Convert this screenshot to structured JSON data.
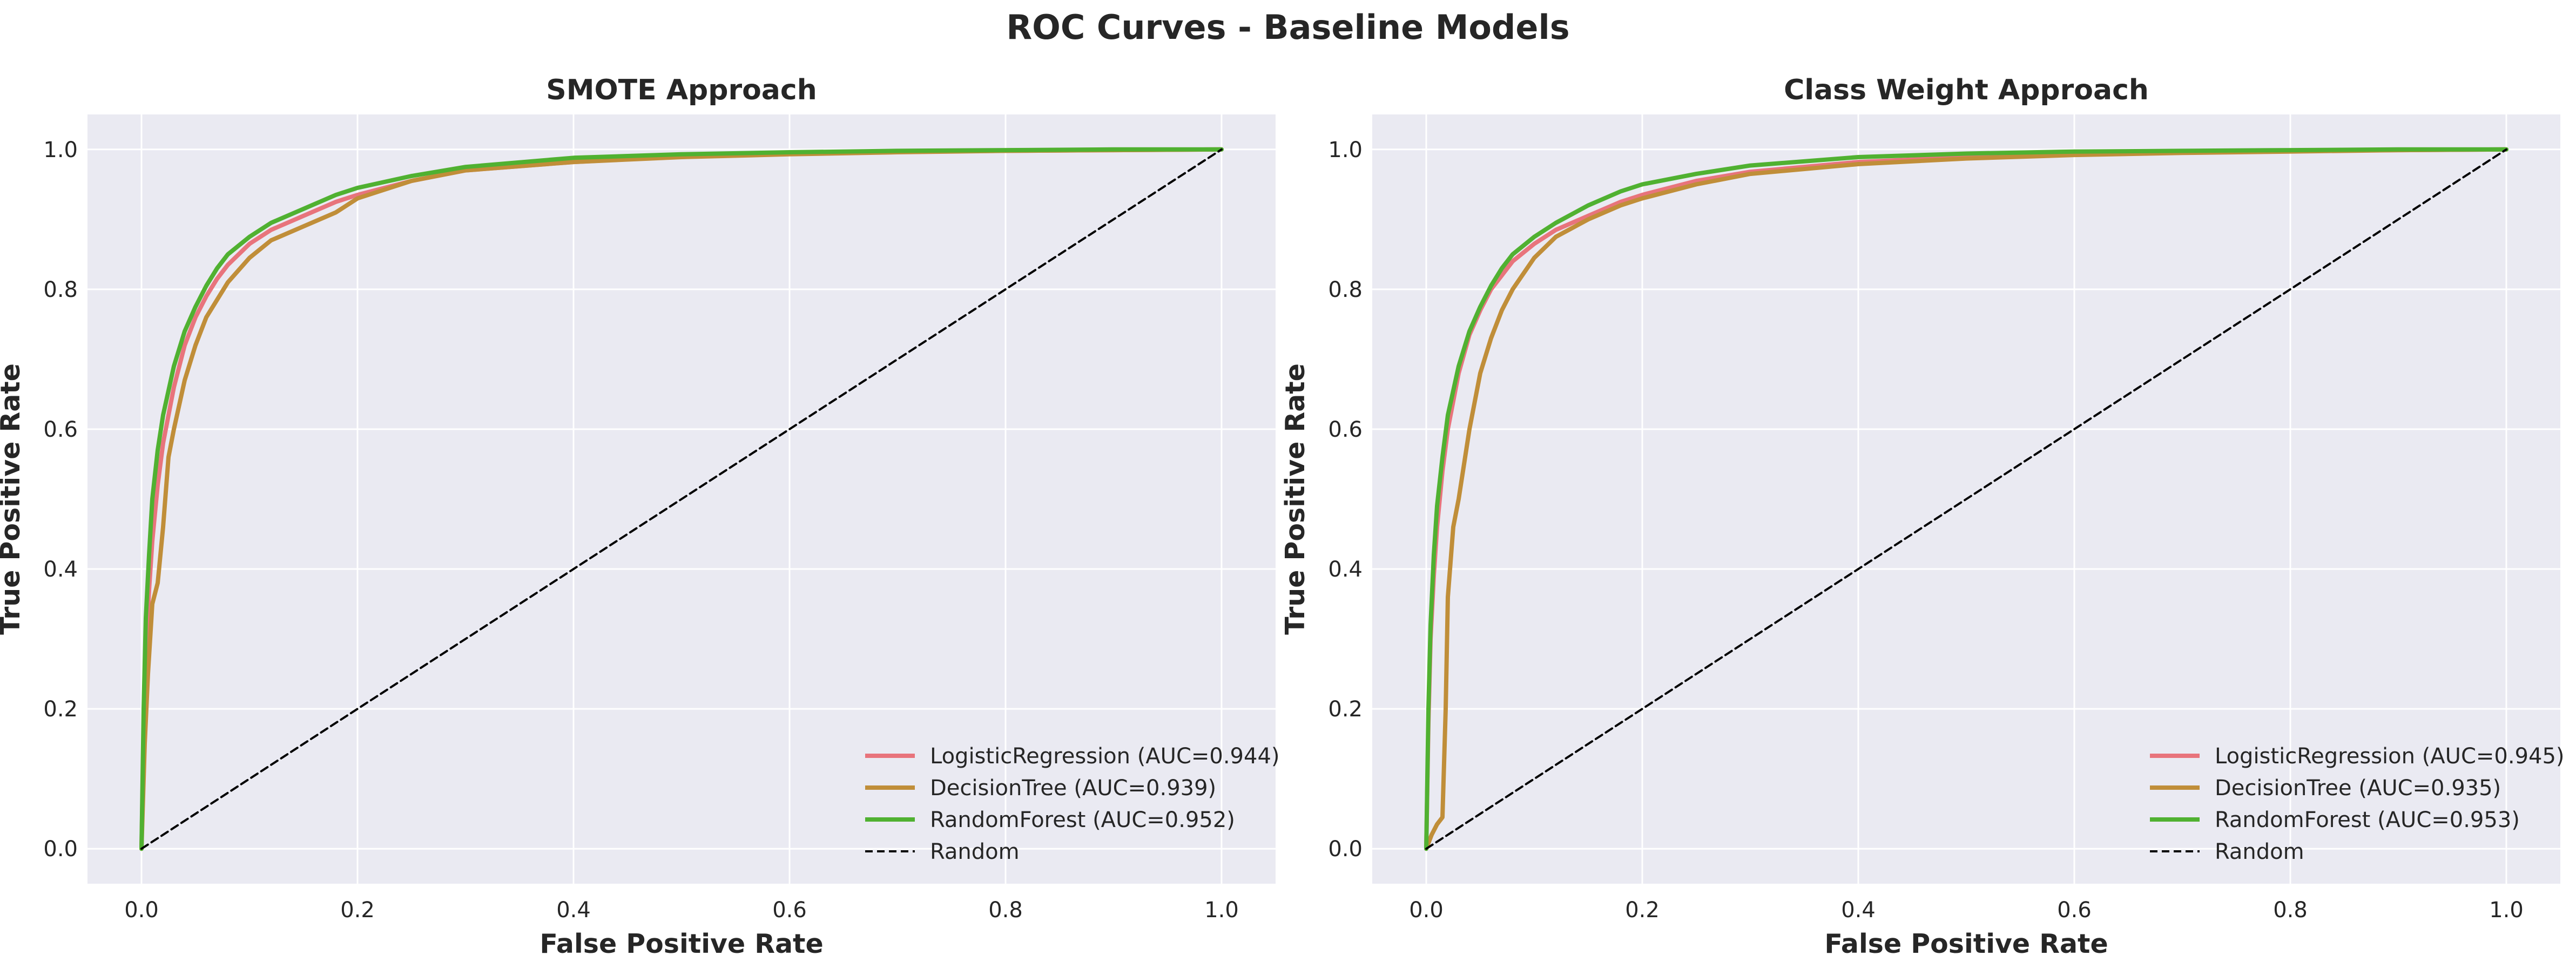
{
  "figure": {
    "suptitle": "ROC Curves - Baseline Models"
  },
  "chart_data": [
    {
      "type": "line",
      "title": "SMOTE Approach",
      "xlabel": "False Positive Rate",
      "ylabel": "True Positive Rate",
      "xlim": [
        -0.05,
        1.05
      ],
      "ylim": [
        -0.05,
        1.05
      ],
      "xticks": [
        "0.0",
        "0.2",
        "0.4",
        "0.6",
        "0.8",
        "1.0"
      ],
      "yticks": [
        "0.0",
        "0.2",
        "0.4",
        "0.6",
        "0.8",
        "1.0"
      ],
      "grid": true,
      "legend_position": "bottom-right",
      "series": [
        {
          "name": "LogisticRegression (AUC=0.944)",
          "color": "#e8747c",
          "style": "solid",
          "x": [
            0,
            0.002,
            0.004,
            0.007,
            0.01,
            0.015,
            0.02,
            0.03,
            0.04,
            0.05,
            0.06,
            0.07,
            0.08,
            0.1,
            0.12,
            0.15,
            0.18,
            0.2,
            0.25,
            0.3,
            0.4,
            0.5,
            0.6,
            0.7,
            0.8,
            0.9,
            1.0
          ],
          "y": [
            0,
            0.17,
            0.28,
            0.37,
            0.44,
            0.52,
            0.58,
            0.66,
            0.72,
            0.76,
            0.79,
            0.815,
            0.835,
            0.865,
            0.885,
            0.905,
            0.925,
            0.935,
            0.955,
            0.97,
            0.982,
            0.99,
            0.994,
            0.997,
            0.998,
            0.999,
            1.0
          ]
        },
        {
          "name": "DecisionTree (AUC=0.939)",
          "color": "#c08e39",
          "style": "solid",
          "x": [
            0,
            0.003,
            0.006,
            0.01,
            0.015,
            0.02,
            0.025,
            0.03,
            0.04,
            0.05,
            0.06,
            0.08,
            0.1,
            0.12,
            0.15,
            0.18,
            0.2,
            0.22,
            0.25,
            0.3,
            0.4,
            0.5,
            0.6,
            0.7,
            0.8,
            0.9,
            1.0
          ],
          "y": [
            0,
            0.15,
            0.25,
            0.35,
            0.38,
            0.46,
            0.56,
            0.6,
            0.67,
            0.72,
            0.76,
            0.81,
            0.845,
            0.87,
            0.89,
            0.91,
            0.93,
            0.94,
            0.955,
            0.97,
            0.982,
            0.989,
            0.993,
            0.996,
            0.998,
            0.999,
            1.0
          ]
        },
        {
          "name": "RandomForest (AUC=0.952)",
          "color": "#50b131",
          "style": "solid",
          "x": [
            0,
            0.002,
            0.004,
            0.007,
            0.01,
            0.015,
            0.02,
            0.03,
            0.04,
            0.05,
            0.06,
            0.07,
            0.08,
            0.1,
            0.12,
            0.15,
            0.18,
            0.2,
            0.25,
            0.3,
            0.4,
            0.5,
            0.6,
            0.7,
            0.8,
            0.9,
            1.0
          ],
          "y": [
            0,
            0.2,
            0.33,
            0.42,
            0.5,
            0.57,
            0.62,
            0.69,
            0.74,
            0.775,
            0.805,
            0.83,
            0.85,
            0.875,
            0.895,
            0.915,
            0.935,
            0.945,
            0.962,
            0.975,
            0.988,
            0.993,
            0.996,
            0.998,
            0.999,
            1.0,
            1.0
          ]
        },
        {
          "name": "Random",
          "color": "#000000",
          "style": "dashed",
          "x": [
            0,
            1
          ],
          "y": [
            0,
            1
          ]
        }
      ]
    },
    {
      "type": "line",
      "title": "Class Weight Approach",
      "xlabel": "False Positive Rate",
      "ylabel": "True Positive Rate",
      "xlim": [
        -0.05,
        1.05
      ],
      "ylim": [
        -0.05,
        1.05
      ],
      "xticks": [
        "0.0",
        "0.2",
        "0.4",
        "0.6",
        "0.8",
        "1.0"
      ],
      "yticks": [
        "0.0",
        "0.2",
        "0.4",
        "0.6",
        "0.8",
        "1.0"
      ],
      "grid": true,
      "legend_position": "bottom-right",
      "series": [
        {
          "name": "LogisticRegression (AUC=0.945)",
          "color": "#e8747c",
          "style": "solid",
          "x": [
            0,
            0.002,
            0.004,
            0.007,
            0.01,
            0.015,
            0.02,
            0.03,
            0.04,
            0.05,
            0.06,
            0.07,
            0.08,
            0.1,
            0.12,
            0.15,
            0.18,
            0.2,
            0.25,
            0.3,
            0.4,
            0.5,
            0.6,
            0.7,
            0.8,
            0.9,
            1.0
          ],
          "y": [
            0,
            0.18,
            0.3,
            0.39,
            0.46,
            0.54,
            0.6,
            0.68,
            0.735,
            0.77,
            0.8,
            0.82,
            0.84,
            0.865,
            0.885,
            0.905,
            0.925,
            0.935,
            0.955,
            0.968,
            0.982,
            0.989,
            0.993,
            0.996,
            0.998,
            0.999,
            1.0
          ]
        },
        {
          "name": "DecisionTree (AUC=0.935)",
          "color": "#c08e39",
          "style": "solid",
          "x": [
            0,
            0.005,
            0.01,
            0.015,
            0.018,
            0.02,
            0.025,
            0.03,
            0.04,
            0.05,
            0.06,
            0.07,
            0.08,
            0.1,
            0.12,
            0.15,
            0.18,
            0.2,
            0.25,
            0.3,
            0.4,
            0.5,
            0.6,
            0.7,
            0.8,
            0.9,
            1.0
          ],
          "y": [
            0,
            0.02,
            0.035,
            0.045,
            0.2,
            0.36,
            0.46,
            0.5,
            0.6,
            0.68,
            0.73,
            0.77,
            0.8,
            0.845,
            0.875,
            0.9,
            0.92,
            0.93,
            0.95,
            0.965,
            0.979,
            0.987,
            0.992,
            0.995,
            0.997,
            0.999,
            1.0
          ]
        },
        {
          "name": "RandomForest (AUC=0.953)",
          "color": "#50b131",
          "style": "solid",
          "x": [
            0,
            0.002,
            0.004,
            0.007,
            0.01,
            0.015,
            0.02,
            0.03,
            0.04,
            0.05,
            0.06,
            0.07,
            0.08,
            0.1,
            0.12,
            0.15,
            0.18,
            0.2,
            0.25,
            0.3,
            0.4,
            0.5,
            0.6,
            0.7,
            0.8,
            0.9,
            1.0
          ],
          "y": [
            0,
            0.2,
            0.32,
            0.42,
            0.49,
            0.56,
            0.62,
            0.69,
            0.74,
            0.775,
            0.805,
            0.83,
            0.85,
            0.875,
            0.895,
            0.92,
            0.94,
            0.95,
            0.965,
            0.977,
            0.989,
            0.994,
            0.997,
            0.998,
            0.999,
            1.0,
            1.0
          ]
        },
        {
          "name": "Random",
          "color": "#000000",
          "style": "dashed",
          "x": [
            0,
            1
          ],
          "y": [
            0,
            1
          ]
        }
      ]
    }
  ],
  "style": {
    "plot_background": "#eaeaf2",
    "grid_color": "#ffffff",
    "text_color": "#262626"
  }
}
